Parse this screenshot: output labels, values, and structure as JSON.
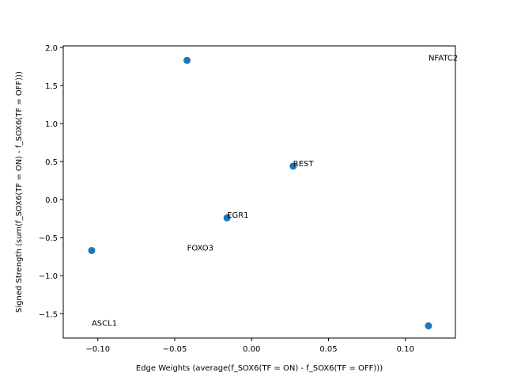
{
  "chart_data": {
    "type": "scatter",
    "xlabel": "Edge Weights (average(f_SOX6(TF = ON) - f_SOX6(TF = OFF)))",
    "ylabel": "Signed Strength (sum(f_SOX6(TF = ON) - f_SOX6(TF = OFF)))",
    "xlim": [
      -0.1225,
      0.1325
    ],
    "ylim": [
      -1.82,
      2.02
    ],
    "x_ticks": [
      -0.1,
      -0.05,
      0.0,
      0.05,
      0.1
    ],
    "x_tick_labels": [
      "−0.10",
      "−0.05",
      "0.00",
      "0.05",
      "0.10"
    ],
    "y_ticks": [
      -1.5,
      -1.0,
      -0.5,
      0.0,
      0.5,
      1.0,
      1.5,
      2.0
    ],
    "y_tick_labels": [
      "−1.5",
      "−1.0",
      "−0.5",
      "0.0",
      "0.5",
      "1.0",
      "1.5",
      "2.0"
    ],
    "grid": false,
    "marker_color": "#1f77b4",
    "points": [
      {
        "x": -0.104,
        "y": -0.67
      },
      {
        "x": -0.042,
        "y": 1.83
      },
      {
        "x": -0.016,
        "y": -0.24
      },
      {
        "x": 0.027,
        "y": 0.44
      },
      {
        "x": 0.115,
        "y": -1.66
      }
    ],
    "annotations": [
      {
        "text": "NFATC2",
        "x": 0.115,
        "y": 1.83
      },
      {
        "text": "REST",
        "x": 0.027,
        "y": 0.44
      },
      {
        "text": "EGR1",
        "x": -0.016,
        "y": -0.24
      },
      {
        "text": "FOXO3",
        "x": -0.042,
        "y": -0.67
      },
      {
        "text": "ASCL1",
        "x": -0.104,
        "y": -1.66
      }
    ]
  }
}
